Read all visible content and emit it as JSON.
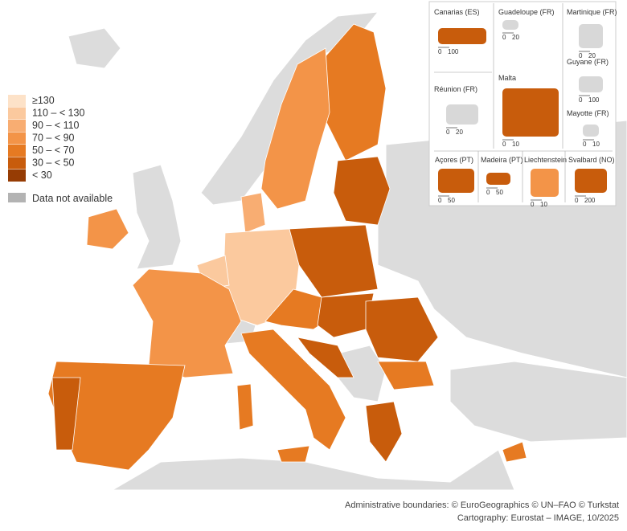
{
  "legend": {
    "items": [
      {
        "label": "≥130",
        "color": "#fde2c8"
      },
      {
        "label": "110 – < 130",
        "color": "#fbc99e"
      },
      {
        "label": "90 – < 110",
        "color": "#f8ad72"
      },
      {
        "label": "70 – < 90",
        "color": "#f39448"
      },
      {
        "label": "50 – < 70",
        "color": "#e67a22"
      },
      {
        "label": "30 – < 50",
        "color": "#c85c0c"
      },
      {
        "label": "< 30",
        "color": "#963c04"
      },
      {
        "label": "Data not available",
        "color": "#b3b3b3"
      }
    ]
  },
  "insets": [
    {
      "name": "Canarias (ES)",
      "scale": [
        "0",
        "100"
      ]
    },
    {
      "name": "Guadeloupe (FR)",
      "scale": [
        "0",
        "20"
      ]
    },
    {
      "name": "Martinique (FR)",
      "scale": [
        "0",
        "20"
      ]
    },
    {
      "name": "Réunion (FR)",
      "scale": [
        "0",
        "20"
      ]
    },
    {
      "name": "Malta",
      "scale": [
        "0",
        "10"
      ]
    },
    {
      "name": "Guyane (FR)",
      "scale": [
        "0",
        "100"
      ]
    },
    {
      "name": "Mayotte (FR)",
      "scale": [
        "0",
        "10"
      ]
    },
    {
      "name": "Açores (PT)",
      "scale": [
        "0",
        "50"
      ]
    },
    {
      "name": "Madeira (PT)",
      "scale": [
        "0",
        "50"
      ]
    },
    {
      "name": "Liechtenstein",
      "scale": [
        "0",
        "10"
      ]
    },
    {
      "name": "Svalbard (NO)",
      "scale": [
        "0",
        "200"
      ]
    }
  ],
  "credits": [
    "Administrative boundaries: © EuroGeographics © UN–FAO © Turkstat",
    "Cartography: Eurostat – IMAGE, 10/2025"
  ]
}
